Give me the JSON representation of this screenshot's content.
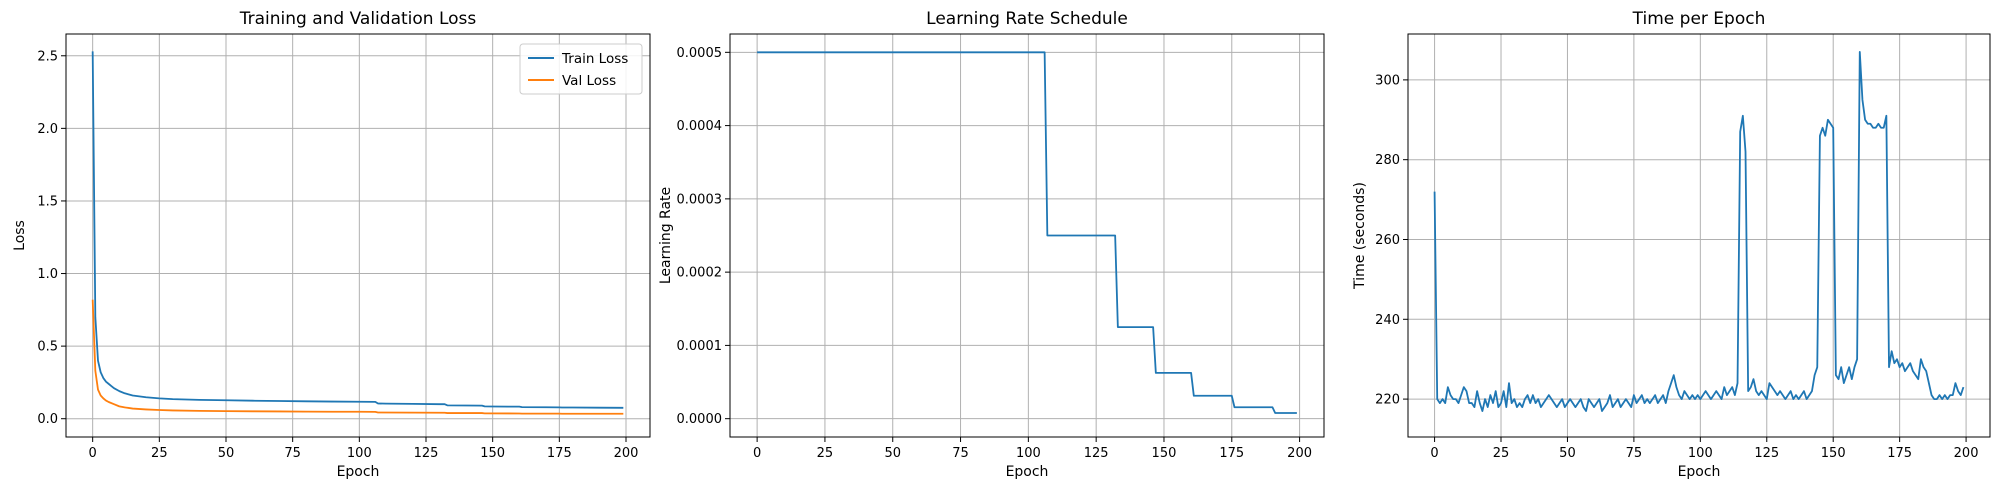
{
  "figure": {
    "background": "#ffffff",
    "grid_color": "#b0b0b0",
    "series_colors": {
      "train": "#1f77b4",
      "val": "#ff7f0e"
    }
  },
  "chart_data": [
    {
      "type": "line",
      "title": "Training and Validation Loss",
      "xlabel": "Epoch",
      "ylabel": "Loss",
      "xlim": [
        -10,
        209
      ],
      "ylim": [
        -0.126,
        2.65
      ],
      "xticks": [
        0,
        25,
        50,
        75,
        100,
        125,
        150,
        175,
        200
      ],
      "xtick_labels": [
        "0",
        "25",
        "50",
        "75",
        "100",
        "125",
        "150",
        "175",
        "200"
      ],
      "yticks": [
        0.0,
        0.5,
        1.0,
        1.5,
        2.0,
        2.5
      ],
      "ytick_labels": [
        "0.0",
        "0.5",
        "1.0",
        "1.5",
        "2.0",
        "2.5"
      ],
      "grid": true,
      "legend": "top-right",
      "series": [
        {
          "name": "Train Loss",
          "color": "#1f77b4",
          "x": [
            0,
            1,
            2,
            3,
            4,
            5,
            6,
            7,
            8,
            10,
            12,
            15,
            20,
            25,
            30,
            40,
            50,
            60,
            70,
            80,
            90,
            100,
            106,
            107,
            110,
            120,
            130,
            132,
            133,
            140,
            146,
            147,
            150,
            160,
            161,
            170,
            175,
            176,
            180,
            190,
            199
          ],
          "y": [
            2.53,
            0.7,
            0.4,
            0.32,
            0.28,
            0.255,
            0.24,
            0.225,
            0.21,
            0.19,
            0.175,
            0.16,
            0.148,
            0.14,
            0.135,
            0.13,
            0.127,
            0.124,
            0.122,
            0.12,
            0.118,
            0.117,
            0.116,
            0.105,
            0.104,
            0.102,
            0.1,
            0.1,
            0.092,
            0.091,
            0.09,
            0.085,
            0.084,
            0.083,
            0.08,
            0.079,
            0.078,
            0.077,
            0.077,
            0.076,
            0.075
          ]
        },
        {
          "name": "Val Loss",
          "color": "#ff7f0e",
          "x": [
            0,
            1,
            2,
            3,
            4,
            5,
            6,
            8,
            10,
            12,
            15,
            20,
            25,
            30,
            40,
            50,
            60,
            70,
            80,
            90,
            100,
            106,
            107,
            120,
            132,
            133,
            146,
            147,
            160,
            161,
            175,
            176,
            199
          ],
          "y": [
            0.82,
            0.33,
            0.2,
            0.16,
            0.14,
            0.125,
            0.115,
            0.1,
            0.085,
            0.078,
            0.07,
            0.064,
            0.06,
            0.057,
            0.054,
            0.052,
            0.051,
            0.05,
            0.049,
            0.048,
            0.048,
            0.047,
            0.043,
            0.042,
            0.041,
            0.039,
            0.039,
            0.037,
            0.036,
            0.035,
            0.035,
            0.034,
            0.034
          ]
        }
      ]
    },
    {
      "type": "line",
      "title": "Learning Rate Schedule",
      "xlabel": "Epoch",
      "ylabel": "Learning Rate",
      "xlim": [
        -10,
        209
      ],
      "ylim": [
        -2.5e-05,
        0.000525
      ],
      "xticks": [
        0,
        25,
        50,
        75,
        100,
        125,
        150,
        175,
        200
      ],
      "xtick_labels": [
        "0",
        "25",
        "50",
        "75",
        "100",
        "125",
        "150",
        "175",
        "200"
      ],
      "yticks": [
        0.0,
        0.0001,
        0.0002,
        0.0003,
        0.0004,
        0.0005
      ],
      "ytick_labels": [
        "0.0000",
        "0.0001",
        "0.0002",
        "0.0003",
        "0.0004",
        "0.0005"
      ],
      "grid": true,
      "series": [
        {
          "color": "#1f77b4",
          "x": [
            0,
            106,
            107,
            132,
            133,
            146,
            147,
            160,
            161,
            175,
            176,
            190,
            191,
            199
          ],
          "y": [
            0.0005,
            0.0005,
            0.00025,
            0.00025,
            0.000125,
            0.000125,
            6.25e-05,
            6.25e-05,
            3.125e-05,
            3.125e-05,
            1.56e-05,
            1.56e-05,
            7.8e-06,
            7.8e-06
          ]
        }
      ]
    },
    {
      "type": "line",
      "title": "Time per Epoch",
      "xlabel": "Epoch",
      "ylabel": "Time (seconds)",
      "xlim": [
        -10,
        209
      ],
      "ylim": [
        210.5,
        311.5
      ],
      "xticks": [
        0,
        25,
        50,
        75,
        100,
        125,
        150,
        175,
        200
      ],
      "xtick_labels": [
        "0",
        "25",
        "50",
        "75",
        "100",
        "125",
        "150",
        "175",
        "200"
      ],
      "yticks": [
        220,
        240,
        260,
        280,
        300
      ],
      "ytick_labels": [
        "220",
        "240",
        "260",
        "280",
        "300"
      ],
      "grid": true,
      "series": [
        {
          "color": "#1f77b4",
          "x": [
            0,
            1,
            2,
            3,
            4,
            5,
            6,
            7,
            8,
            9,
            10,
            11,
            12,
            13,
            14,
            15,
            16,
            17,
            18,
            19,
            20,
            21,
            22,
            23,
            24,
            25,
            26,
            27,
            28,
            29,
            30,
            31,
            32,
            33,
            34,
            35,
            36,
            37,
            38,
            39,
            40,
            41,
            42,
            43,
            44,
            45,
            46,
            47,
            48,
            49,
            50,
            51,
            52,
            53,
            54,
            55,
            56,
            57,
            58,
            59,
            60,
            61,
            62,
            63,
            64,
            65,
            66,
            67,
            68,
            69,
            70,
            71,
            72,
            73,
            74,
            75,
            76,
            77,
            78,
            79,
            80,
            81,
            82,
            83,
            84,
            85,
            86,
            87,
            88,
            89,
            90,
            91,
            92,
            93,
            94,
            95,
            96,
            97,
            98,
            99,
            100,
            101,
            102,
            103,
            104,
            105,
            106,
            107,
            108,
            109,
            110,
            111,
            112,
            113,
            114,
            115,
            116,
            117,
            118,
            119,
            120,
            121,
            122,
            123,
            124,
            125,
            126,
            127,
            128,
            129,
            130,
            131,
            132,
            133,
            134,
            135,
            136,
            137,
            138,
            139,
            140,
            141,
            142,
            143,
            144,
            145,
            146,
            147,
            148,
            149,
            150,
            151,
            152,
            153,
            154,
            155,
            156,
            157,
            158,
            159,
            160,
            161,
            162,
            163,
            164,
            165,
            166,
            167,
            168,
            169,
            170,
            171,
            172,
            173,
            174,
            175,
            176,
            177,
            178,
            179,
            180,
            181,
            182,
            183,
            184,
            185,
            186,
            187,
            188,
            189,
            190,
            191,
            192,
            193,
            194,
            195,
            196,
            197,
            198,
            199
          ],
          "y": [
            272,
            220,
            219,
            220,
            219,
            223,
            221,
            220,
            220,
            219,
            221,
            223,
            222,
            219,
            219,
            218,
            222,
            219,
            217,
            220,
            218,
            221,
            219,
            222,
            218,
            219,
            222,
            218,
            224,
            219,
            220,
            218,
            219,
            218,
            220,
            221,
            219,
            221,
            219,
            220,
            218,
            219,
            220,
            221,
            220,
            219,
            218,
            219,
            220,
            218,
            219,
            220,
            219,
            218,
            219,
            220,
            218,
            217,
            220,
            219,
            218,
            219,
            220,
            217,
            218,
            219,
            221,
            218,
            219,
            220,
            218,
            219,
            220,
            219,
            218,
            221,
            219,
            220,
            221,
            219,
            220,
            219,
            220,
            221,
            219,
            220,
            221,
            219,
            222,
            224,
            226,
            223,
            221,
            220,
            222,
            221,
            220,
            221,
            220,
            221,
            220,
            221,
            222,
            221,
            220,
            221,
            222,
            221,
            220,
            223,
            221,
            222,
            223,
            221,
            224,
            287,
            291,
            282,
            222,
            223,
            225,
            222,
            221,
            222,
            221,
            220,
            224,
            223,
            222,
            221,
            222,
            221,
            220,
            221,
            222,
            220,
            221,
            220,
            221,
            222,
            220,
            221,
            222,
            226,
            228,
            286,
            288,
            286,
            290,
            289,
            288,
            226,
            225,
            228,
            224,
            226,
            228,
            225,
            228,
            230,
            307,
            295,
            290,
            289,
            289,
            288,
            288,
            289,
            288,
            288,
            291,
            228,
            232,
            229,
            230,
            228,
            229,
            227,
            228,
            229,
            227,
            226,
            225,
            230,
            228,
            227,
            224,
            221,
            220,
            220,
            221,
            220,
            221,
            220,
            221,
            221,
            224,
            222,
            221,
            223
          ]
        }
      ]
    }
  ]
}
